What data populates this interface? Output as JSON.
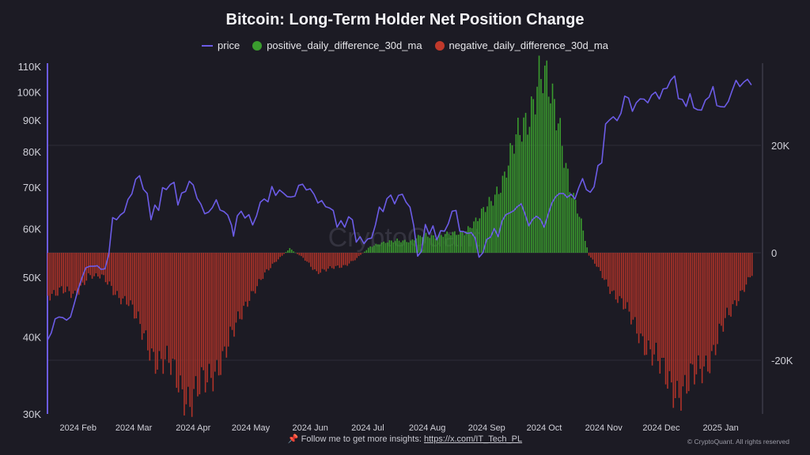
{
  "chart_data": {
    "type": "bar+line",
    "title": "Bitcoin: Long-Term Holder Net Position Change",
    "watermark": "CryptoQuant",
    "legend": [
      {
        "name": "price",
        "color": "#6c5ce7",
        "marker": "line"
      },
      {
        "name": "positive_daily_difference_30d_ma",
        "color": "#3a9c2e",
        "marker": "dot"
      },
      {
        "name": "negative_daily_difference_30d_ma",
        "color": "#c0392b",
        "marker": "dot"
      }
    ],
    "x_tick_labels": [
      "2024 Feb",
      "2024 Mar",
      "2024 Apr",
      "2024 May",
      "2024 Jun",
      "2024 Jul",
      "2024 Aug",
      "2024 Sep",
      "2024 Oct",
      "2024 Nov",
      "2024 Dec",
      "2025 Jan"
    ],
    "x_range": [
      "2024-01-25",
      "2025-01-31"
    ],
    "left_axis": {
      "scale": "log",
      "ticks": [
        30000,
        40000,
        50000,
        60000,
        70000,
        80000,
        90000,
        100000,
        110000
      ],
      "tick_labels": [
        "30K",
        "40K",
        "50K",
        "60K",
        "70K",
        "80K",
        "90K",
        "100K",
        "110K"
      ]
    },
    "right_axis": {
      "scale": "linear",
      "range": [
        -30000,
        35000
      ],
      "ticks": [
        -20000,
        0,
        20000
      ],
      "tick_labels": [
        "-20K",
        "0",
        "20K"
      ]
    },
    "price_series": [
      [
        "2024-01-25",
        39500
      ],
      [
        "2024-01-27",
        40600
      ],
      [
        "2024-01-29",
        42800
      ],
      [
        "2024-01-31",
        43100
      ],
      [
        "2024-02-02",
        43000
      ],
      [
        "2024-02-04",
        42600
      ],
      [
        "2024-02-06",
        43100
      ],
      [
        "2024-02-08",
        45300
      ],
      [
        "2024-02-10",
        47800
      ],
      [
        "2024-02-12",
        49900
      ],
      [
        "2024-02-14",
        51800
      ],
      [
        "2024-02-16",
        52100
      ],
      [
        "2024-02-18",
        52100
      ],
      [
        "2024-02-20",
        52200
      ],
      [
        "2024-02-22",
        51500
      ],
      [
        "2024-02-24",
        51600
      ],
      [
        "2024-02-26",
        54500
      ],
      [
        "2024-02-28",
        62500
      ],
      [
        "2024-03-01",
        62000
      ],
      [
        "2024-03-03",
        63100
      ],
      [
        "2024-03-05",
        63800
      ],
      [
        "2024-03-07",
        66900
      ],
      [
        "2024-03-09",
        68300
      ],
      [
        "2024-03-11",
        72100
      ],
      [
        "2024-03-13",
        73100
      ],
      [
        "2024-03-15",
        69500
      ],
      [
        "2024-03-17",
        68400
      ],
      [
        "2024-03-19",
        62000
      ],
      [
        "2024-03-21",
        65500
      ],
      [
        "2024-03-23",
        64200
      ],
      [
        "2024-03-25",
        69900
      ],
      [
        "2024-03-27",
        69400
      ],
      [
        "2024-03-29",
        70700
      ],
      [
        "2024-03-31",
        71300
      ],
      [
        "2024-04-02",
        65500
      ],
      [
        "2024-04-04",
        68500
      ],
      [
        "2024-04-06",
        68900
      ],
      [
        "2024-04-08",
        71600
      ],
      [
        "2024-04-10",
        70600
      ],
      [
        "2024-04-12",
        67200
      ],
      [
        "2024-04-14",
        65700
      ],
      [
        "2024-04-16",
        63400
      ],
      [
        "2024-04-18",
        63800
      ],
      [
        "2024-04-20",
        64900
      ],
      [
        "2024-04-22",
        66800
      ],
      [
        "2024-04-24",
        64300
      ],
      [
        "2024-04-26",
        63900
      ],
      [
        "2024-04-28",
        63100
      ],
      [
        "2024-04-30",
        60700
      ],
      [
        "2024-05-01",
        58300
      ],
      [
        "2024-05-03",
        62900
      ],
      [
        "2024-05-05",
        64000
      ],
      [
        "2024-05-07",
        62400
      ],
      [
        "2024-05-09",
        63200
      ],
      [
        "2024-05-11",
        60800
      ],
      [
        "2024-05-13",
        62900
      ],
      [
        "2024-05-15",
        66200
      ],
      [
        "2024-05-17",
        67000
      ],
      [
        "2024-05-19",
        66300
      ],
      [
        "2024-05-21",
        70200
      ],
      [
        "2024-05-23",
        67900
      ],
      [
        "2024-05-25",
        69300
      ],
      [
        "2024-05-27",
        68500
      ],
      [
        "2024-05-29",
        67600
      ],
      [
        "2024-05-31",
        67500
      ],
      [
        "2024-06-02",
        67700
      ],
      [
        "2024-06-04",
        70500
      ],
      [
        "2024-06-06",
        70800
      ],
      [
        "2024-06-08",
        69300
      ],
      [
        "2024-06-10",
        69600
      ],
      [
        "2024-06-12",
        68200
      ],
      [
        "2024-06-14",
        66000
      ],
      [
        "2024-06-16",
        66600
      ],
      [
        "2024-06-18",
        65100
      ],
      [
        "2024-06-20",
        64800
      ],
      [
        "2024-06-22",
        64200
      ],
      [
        "2024-06-24",
        60300
      ],
      [
        "2024-06-26",
        61800
      ],
      [
        "2024-06-28",
        60300
      ],
      [
        "2024-06-30",
        62700
      ],
      [
        "2024-07-02",
        62000
      ],
      [
        "2024-07-04",
        57000
      ],
      [
        "2024-07-06",
        58200
      ],
      [
        "2024-07-08",
        56700
      ],
      [
        "2024-07-10",
        57700
      ],
      [
        "2024-07-12",
        57900
      ],
      [
        "2024-07-14",
        60800
      ],
      [
        "2024-07-16",
        65000
      ],
      [
        "2024-07-18",
        63900
      ],
      [
        "2024-07-20",
        67100
      ],
      [
        "2024-07-22",
        68000
      ],
      [
        "2024-07-24",
        65800
      ],
      [
        "2024-07-26",
        67900
      ],
      [
        "2024-07-28",
        68200
      ],
      [
        "2024-07-30",
        66200
      ],
      [
        "2024-08-01",
        65000
      ],
      [
        "2024-08-03",
        60600
      ],
      [
        "2024-08-05",
        54100
      ],
      [
        "2024-08-07",
        55100
      ],
      [
        "2024-08-09",
        60900
      ],
      [
        "2024-08-11",
        58700
      ],
      [
        "2024-08-13",
        60600
      ],
      [
        "2024-08-15",
        57500
      ],
      [
        "2024-08-17",
        59500
      ],
      [
        "2024-08-19",
        59400
      ],
      [
        "2024-08-21",
        61100
      ],
      [
        "2024-08-23",
        64000
      ],
      [
        "2024-08-25",
        64200
      ],
      [
        "2024-08-27",
        59400
      ],
      [
        "2024-08-29",
        59300
      ],
      [
        "2024-08-31",
        58900
      ],
      [
        "2024-09-02",
        59100
      ],
      [
        "2024-09-04",
        57900
      ],
      [
        "2024-09-06",
        53900
      ],
      [
        "2024-09-08",
        54800
      ],
      [
        "2024-09-10",
        57600
      ],
      [
        "2024-09-12",
        58100
      ],
      [
        "2024-09-14",
        60000
      ],
      [
        "2024-09-16",
        58200
      ],
      [
        "2024-09-18",
        61700
      ],
      [
        "2024-09-20",
        63200
      ],
      [
        "2024-09-22",
        63600
      ],
      [
        "2024-09-24",
        64100
      ],
      [
        "2024-09-26",
        65100
      ],
      [
        "2024-09-28",
        65800
      ],
      [
        "2024-09-30",
        63300
      ],
      [
        "2024-10-02",
        60600
      ],
      [
        "2024-10-04",
        62100
      ],
      [
        "2024-10-06",
        62800
      ],
      [
        "2024-10-08",
        62100
      ],
      [
        "2024-10-10",
        60300
      ],
      [
        "2024-10-12",
        63200
      ],
      [
        "2024-10-14",
        66000
      ],
      [
        "2024-10-16",
        67600
      ],
      [
        "2024-10-18",
        68400
      ],
      [
        "2024-10-20",
        68400
      ],
      [
        "2024-10-22",
        67400
      ],
      [
        "2024-10-24",
        68200
      ],
      [
        "2024-10-26",
        67000
      ],
      [
        "2024-10-28",
        69900
      ],
      [
        "2024-10-30",
        72300
      ],
      [
        "2024-11-01",
        69400
      ],
      [
        "2024-11-03",
        68700
      ],
      [
        "2024-11-05",
        70100
      ],
      [
        "2024-11-07",
        75900
      ],
      [
        "2024-11-09",
        76700
      ],
      [
        "2024-11-11",
        88700
      ],
      [
        "2024-11-13",
        90000
      ],
      [
        "2024-11-15",
        91100
      ],
      [
        "2024-11-17",
        89800
      ],
      [
        "2024-11-19",
        92300
      ],
      [
        "2024-11-21",
        98400
      ],
      [
        "2024-11-23",
        97700
      ],
      [
        "2024-11-25",
        93000
      ],
      [
        "2024-11-27",
        96000
      ],
      [
        "2024-11-29",
        97400
      ],
      [
        "2024-12-01",
        97300
      ],
      [
        "2024-12-03",
        96000
      ],
      [
        "2024-12-05",
        98800
      ],
      [
        "2024-12-07",
        99900
      ],
      [
        "2024-12-09",
        97400
      ],
      [
        "2024-12-11",
        101100
      ],
      [
        "2024-12-13",
        101400
      ],
      [
        "2024-12-15",
        104500
      ],
      [
        "2024-12-17",
        106100
      ],
      [
        "2024-12-19",
        97500
      ],
      [
        "2024-12-21",
        97200
      ],
      [
        "2024-12-23",
        94700
      ],
      [
        "2024-12-25",
        99300
      ],
      [
        "2024-12-27",
        94200
      ],
      [
        "2024-12-29",
        93500
      ],
      [
        "2024-12-31",
        93400
      ],
      [
        "2025-01-02",
        96900
      ],
      [
        "2025-01-04",
        98100
      ],
      [
        "2025-01-06",
        102000
      ],
      [
        "2025-01-08",
        95000
      ],
      [
        "2025-01-10",
        94600
      ],
      [
        "2025-01-12",
        94500
      ],
      [
        "2025-01-14",
        96500
      ],
      [
        "2025-01-16",
        100500
      ],
      [
        "2025-01-18",
        104400
      ],
      [
        "2025-01-20",
        102000
      ],
      [
        "2025-01-22",
        103700
      ],
      [
        "2025-01-24",
        104800
      ],
      [
        "2025-01-26",
        102600
      ]
    ],
    "net_position_series_note": "30d moving average of daily LTH net position change (BTC); positive values green, negative red",
    "net_position_series": [
      [
        "2024-01-25",
        -8000
      ],
      [
        "2024-02-01",
        -6500
      ],
      [
        "2024-02-08",
        -8500
      ],
      [
        "2024-02-15",
        -4000
      ],
      [
        "2024-02-22",
        -4500
      ],
      [
        "2024-02-29",
        -7500
      ],
      [
        "2024-03-07",
        -9000
      ],
      [
        "2024-03-14",
        -15000
      ],
      [
        "2024-03-21",
        -19500
      ],
      [
        "2024-03-28",
        -21000
      ],
      [
        "2024-04-04",
        -25500
      ],
      [
        "2024-04-08",
        -27000
      ],
      [
        "2024-04-11",
        -26000
      ],
      [
        "2024-04-18",
        -24000
      ],
      [
        "2024-04-25",
        -19000
      ],
      [
        "2024-05-02",
        -14000
      ],
      [
        "2024-05-09",
        -8000
      ],
      [
        "2024-05-16",
        -4500
      ],
      [
        "2024-05-23",
        -1500
      ],
      [
        "2024-05-30",
        800
      ],
      [
        "2024-06-06",
        -1000
      ],
      [
        "2024-06-13",
        -3500
      ],
      [
        "2024-06-20",
        -3000
      ],
      [
        "2024-06-27",
        -2500
      ],
      [
        "2024-07-04",
        -1000
      ],
      [
        "2024-07-11",
        1200
      ],
      [
        "2024-07-18",
        1800
      ],
      [
        "2024-07-25",
        2500
      ],
      [
        "2024-08-01",
        2000
      ],
      [
        "2024-08-08",
        3500
      ],
      [
        "2024-08-15",
        3000
      ],
      [
        "2024-08-22",
        3500
      ],
      [
        "2024-08-29",
        4000
      ],
      [
        "2024-09-05",
        6000
      ],
      [
        "2024-09-12",
        10000
      ],
      [
        "2024-09-19",
        14000
      ],
      [
        "2024-09-26",
        22000
      ],
      [
        "2024-10-03",
        27500
      ],
      [
        "2024-10-07",
        32000
      ],
      [
        "2024-10-11",
        31000
      ],
      [
        "2024-10-17",
        26000
      ],
      [
        "2024-10-23",
        12000
      ],
      [
        "2024-10-29",
        5500
      ],
      [
        "2024-11-02",
        -500
      ],
      [
        "2024-11-06",
        -2500
      ],
      [
        "2024-11-13",
        -6500
      ],
      [
        "2024-11-20",
        -10000
      ],
      [
        "2024-11-27",
        -14000
      ],
      [
        "2024-12-04",
        -18500
      ],
      [
        "2024-12-11",
        -22500
      ],
      [
        "2024-12-18",
        -25500
      ],
      [
        "2024-12-22",
        -26000
      ],
      [
        "2024-12-29",
        -22000
      ],
      [
        "2025-01-05",
        -19000
      ],
      [
        "2025-01-12",
        -13000
      ],
      [
        "2025-01-19",
        -8000
      ],
      [
        "2025-01-26",
        -4000
      ]
    ]
  },
  "footer": {
    "pin_icon": "📌",
    "text": "Follow me to get more insights: ",
    "link": "https://x.com/IT_Tech_PL",
    "copyright": "© CryptoQuant. All rights reserved"
  }
}
